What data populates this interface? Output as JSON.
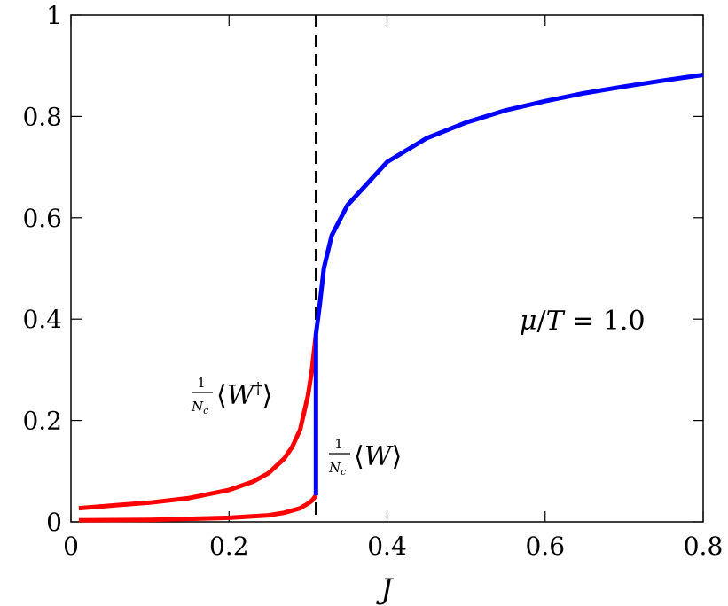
{
  "chart_data": {
    "type": "line",
    "xlabel": "J",
    "ylabel": "",
    "xlim": [
      0,
      0.8
    ],
    "ylim": [
      0,
      1
    ],
    "xticks": [
      {
        "value": 0,
        "label": "0"
      },
      {
        "value": 0.2,
        "label": "0.2"
      },
      {
        "value": 0.4,
        "label": "0.4"
      },
      {
        "value": 0.6,
        "label": "0.6"
      },
      {
        "value": 0.8,
        "label": "0.8"
      }
    ],
    "yticks": [
      {
        "value": 0,
        "label": "0"
      },
      {
        "value": 0.2,
        "label": "0.2"
      },
      {
        "value": 0.4,
        "label": "0.4"
      },
      {
        "value": 0.6,
        "label": "0.6"
      },
      {
        "value": 0.8,
        "label": "0.8"
      },
      {
        "value": 1,
        "label": "1"
      }
    ],
    "grid": false,
    "critical_line_x": 0.31,
    "annotation": {
      "mu": "μ",
      "slash": "/",
      "T": "T",
      "eq": " = 1.0"
    },
    "label_w_dagger": {
      "num": "1",
      "N": "N",
      "c": "c",
      "open": "⟨",
      "W": "W",
      "dagger": "†",
      "close": "⟩"
    },
    "label_w": {
      "num": "1",
      "N": "N",
      "c": "c",
      "open": "⟨",
      "W": "W",
      "close": "⟩"
    },
    "series": [
      {
        "color": "#ff0000",
        "x": [
          0.01,
          0.05,
          0.1,
          0.15,
          0.2,
          0.23,
          0.25,
          0.27,
          0.28,
          0.29,
          0.3,
          0.305,
          0.31
        ],
        "y": [
          0.027,
          0.032,
          0.038,
          0.047,
          0.063,
          0.079,
          0.096,
          0.125,
          0.148,
          0.182,
          0.25,
          0.3,
          0.37
        ]
      },
      {
        "color": "#ff0000",
        "x": [
          0.01,
          0.1,
          0.2,
          0.25,
          0.27,
          0.29,
          0.3,
          0.305,
          0.31
        ],
        "y": [
          0.003,
          0.004,
          0.008,
          0.013,
          0.018,
          0.027,
          0.036,
          0.042,
          0.052
        ]
      },
      {
        "color": "#0000ff",
        "x": [
          0.31,
          0.31,
          0.315,
          0.32,
          0.33,
          0.35,
          0.4,
          0.45,
          0.5,
          0.55,
          0.6,
          0.65,
          0.7,
          0.75,
          0.8
        ],
        "y": [
          0.052,
          0.37,
          0.43,
          0.5,
          0.565,
          0.625,
          0.71,
          0.757,
          0.788,
          0.812,
          0.83,
          0.846,
          0.859,
          0.871,
          0.882
        ]
      }
    ]
  }
}
